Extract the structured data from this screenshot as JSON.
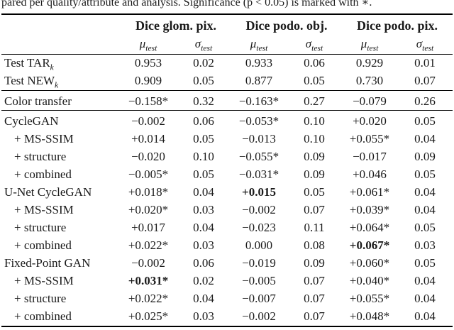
{
  "caption": {
    "partial_text": "pared per quality/attribute and analysis. Significance (p < 0.05) is marked with ∗."
  },
  "table": {
    "group_columns": [
      {
        "label": "Dice glom. pix."
      },
      {
        "label": "Dice podo. obj."
      },
      {
        "label": "Dice podo. pix."
      }
    ],
    "subheader": {
      "mu": "μ",
      "sigma": "σ",
      "sub": "test"
    },
    "sections": [
      {
        "rows": [
          {
            "label": "Test TAR",
            "label_sub": "k",
            "indent": false,
            "cells": [
              "0.953",
              "0.02",
              "0.933",
              "0.06",
              "0.929",
              "0.01"
            ],
            "bold": []
          },
          {
            "label": "Test NEW",
            "label_sub": "k",
            "indent": false,
            "cells": [
              "0.909",
              "0.05",
              "0.877",
              "0.05",
              "0.730",
              "0.07"
            ],
            "bold": []
          }
        ]
      },
      {
        "rows": [
          {
            "label": "Color transfer",
            "indent": false,
            "cells": [
              "−0.158*",
              "0.32",
              "−0.163*",
              "0.27",
              "−0.079",
              "0.26"
            ],
            "bold": []
          }
        ]
      },
      {
        "rows": [
          {
            "label": "CycleGAN",
            "indent": false,
            "cells": [
              "−0.002",
              "0.06",
              "−0.053*",
              "0.10",
              "+0.020",
              "0.05"
            ],
            "bold": []
          },
          {
            "label": "+ MS-SSIM",
            "indent": true,
            "cells": [
              "+0.014",
              "0.05",
              "−0.013",
              "0.10",
              "+0.055*",
              "0.04"
            ],
            "bold": []
          },
          {
            "label": "+ structure",
            "indent": true,
            "cells": [
              "−0.020",
              "0.10",
              "−0.055*",
              "0.09",
              "−0.017",
              "0.09"
            ],
            "bold": []
          },
          {
            "label": "+ combined",
            "indent": true,
            "cells": [
              "−0.005*",
              "0.05",
              "−0.031*",
              "0.09",
              "+0.046",
              "0.05"
            ],
            "bold": []
          },
          {
            "label": "U-Net CycleGAN",
            "indent": false,
            "cells": [
              "+0.018*",
              "0.04",
              "+0.015",
              "0.05",
              "+0.061*",
              "0.04"
            ],
            "bold": [
              2
            ]
          },
          {
            "label": "+ MS-SSIM",
            "indent": true,
            "cells": [
              "+0.020*",
              "0.03",
              "−0.002",
              "0.07",
              "+0.039*",
              "0.04"
            ],
            "bold": []
          },
          {
            "label": "+ structure",
            "indent": true,
            "cells": [
              "+0.017",
              "0.04",
              "−0.023",
              "0.11",
              "+0.064*",
              "0.05"
            ],
            "bold": []
          },
          {
            "label": "+ combined",
            "indent": true,
            "cells": [
              "+0.022*",
              "0.03",
              "0.000",
              "0.08",
              "+0.067*",
              "0.03"
            ],
            "bold": [
              4
            ]
          },
          {
            "label": "Fixed-Point GAN",
            "indent": false,
            "cells": [
              "−0.002",
              "0.06",
              "−0.019",
              "0.09",
              "+0.060*",
              "0.05"
            ],
            "bold": []
          },
          {
            "label": "+ MS-SSIM",
            "indent": true,
            "cells": [
              "+0.031*",
              "0.02",
              "−0.005",
              "0.07",
              "+0.040*",
              "0.04"
            ],
            "bold": [
              0
            ]
          },
          {
            "label": "+ structure",
            "indent": true,
            "cells": [
              "+0.022*",
              "0.04",
              "−0.007",
              "0.07",
              "+0.055*",
              "0.04"
            ],
            "bold": []
          },
          {
            "label": "+ combined",
            "indent": true,
            "cells": [
              "+0.025*",
              "0.03",
              "−0.002",
              "0.07",
              "+0.048*",
              "0.04"
            ],
            "bold": []
          }
        ]
      }
    ]
  }
}
